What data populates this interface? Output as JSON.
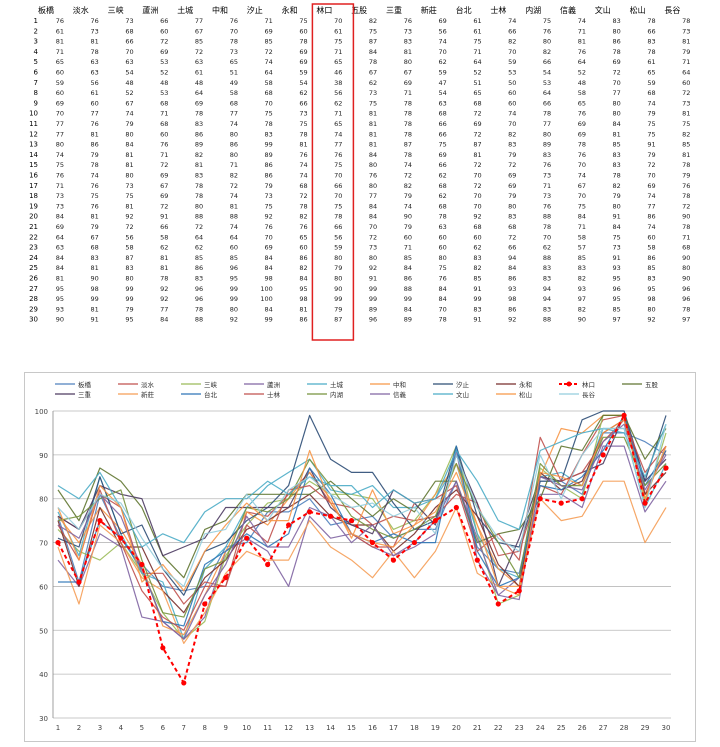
{
  "table": {
    "headers": [
      "板橋",
      "淡水",
      "三峡",
      "蘆洲",
      "土城",
      "中和",
      "汐止",
      "永和",
      "林口",
      "五股",
      "三重",
      "新莊",
      "台北",
      "士林",
      "内湖",
      "信義",
      "文山",
      "松山",
      "長谷"
    ],
    "highlight_col": 8,
    "row_labels": [
      "1",
      "2",
      "3",
      "4",
      "5",
      "6",
      "7",
      "8",
      "9",
      "10",
      "11",
      "12",
      "13",
      "14",
      "15",
      "16",
      "17",
      "18",
      "19",
      "20",
      "21",
      "22",
      "23",
      "24",
      "25",
      "26",
      "27",
      "28",
      "29",
      "30"
    ]
  },
  "chart_data": {
    "type": "line",
    "categories": [
      "1",
      "2",
      "3",
      "4",
      "5",
      "6",
      "7",
      "8",
      "9",
      "10",
      "11",
      "12",
      "13",
      "14",
      "15",
      "16",
      "17",
      "18",
      "19",
      "20",
      "21",
      "22",
      "23",
      "24",
      "25",
      "26",
      "27",
      "28",
      "29",
      "30"
    ],
    "ylim": [
      30,
      100
    ],
    "yticks": [
      "30",
      "40",
      "50",
      "60",
      "70",
      "80",
      "90",
      "100"
    ],
    "grid": true,
    "legend_position": "top",
    "highlight_series": "林口",
    "series": [
      {
        "name": "板橋",
        "color": "#4f81bd",
        "values": [
          76,
          61,
          81,
          71,
          65,
          60,
          59,
          60,
          69,
          70,
          77,
          77,
          80,
          74,
          75,
          76,
          71,
          73,
          73,
          84,
          69,
          64,
          63,
          84,
          84,
          81,
          95,
          95,
          93,
          90
        ]
      },
      {
        "name": "淡水",
        "color": "#c0504d",
        "values": [
          76,
          73,
          81,
          78,
          63,
          63,
          56,
          61,
          60,
          77,
          76,
          81,
          86,
          79,
          78,
          74,
          76,
          75,
          76,
          81,
          79,
          67,
          68,
          83,
          81,
          90,
          98,
          99,
          81,
          91
        ]
      },
      {
        "name": "三峡",
        "color": "#9bbb59",
        "values": [
          73,
          68,
          66,
          70,
          63,
          54,
          48,
          52,
          67,
          74,
          79,
          80,
          84,
          81,
          81,
          80,
          73,
          75,
          81,
          92,
          72,
          56,
          58,
          87,
          83,
          80,
          99,
          99,
          79,
          95
        ]
      },
      {
        "name": "蘆洲",
        "color": "#8064a2",
        "values": [
          66,
          60,
          72,
          69,
          53,
          52,
          48,
          53,
          68,
          71,
          68,
          60,
          76,
          71,
          72,
          69,
          67,
          69,
          72,
          91,
          66,
          58,
          62,
          81,
          81,
          78,
          92,
          92,
          77,
          84
        ]
      },
      {
        "name": "土城",
        "color": "#4bacc6",
        "values": [
          77,
          67,
          85,
          72,
          63,
          61,
          48,
          64,
          69,
          78,
          83,
          86,
          89,
          82,
          81,
          83,
          78,
          78,
          80,
          88,
          72,
          64,
          62,
          85,
          86,
          83,
          96,
          96,
          78,
          88
        ]
      },
      {
        "name": "中和",
        "color": "#f79646",
        "values": [
          76,
          70,
          78,
          73,
          65,
          51,
          49,
          58,
          68,
          77,
          74,
          80,
          86,
          80,
          71,
          82,
          72,
          74,
          81,
          88,
          74,
          64,
          60,
          85,
          96,
          95,
          99,
          99,
          80,
          92
        ]
      },
      {
        "name": "汐止",
        "color": "#2c4d75",
        "values": [
          71,
          69,
          85,
          72,
          74,
          64,
          58,
          68,
          70,
          75,
          78,
          83,
          99,
          89,
          86,
          86,
          79,
          73,
          75,
          92,
          76,
          70,
          69,
          84,
          84,
          98,
          100,
          100,
          84,
          99
        ]
      },
      {
        "name": "永和",
        "color": "#772c2a",
        "values": [
          75,
          60,
          78,
          69,
          69,
          59,
          54,
          62,
          66,
          73,
          75,
          78,
          81,
          76,
          74,
          74,
          68,
          72,
          78,
          82,
          76,
          65,
          60,
          86,
          82,
          84,
          95,
          98,
          81,
          86
        ]
      },
      {
        "name": "林口",
        "color": "#ff0000",
        "dashed": true,
        "values": [
          70,
          61,
          75,
          71,
          65,
          46,
          38,
          56,
          62,
          71,
          65,
          74,
          77,
          76,
          75,
          70,
          66,
          70,
          75,
          78,
          66,
          56,
          59,
          80,
          79,
          80,
          90,
          99,
          79,
          87
        ]
      },
      {
        "name": "五股",
        "color": "#5f7530",
        "values": [
          82,
          75,
          87,
          84,
          78,
          67,
          62,
          73,
          75,
          81,
          81,
          81,
          81,
          84,
          80,
          76,
          80,
          77,
          84,
          84,
          70,
          72,
          73,
          80,
          92,
          91,
          99,
          99,
          89,
          96
        ]
      },
      {
        "name": "三重",
        "color": "#4d3b62",
        "values": [
          76,
          73,
          83,
          81,
          80,
          67,
          69,
          71,
          78,
          78,
          78,
          78,
          87,
          78,
          74,
          72,
          82,
          79,
          74,
          90,
          79,
          60,
          71,
          85,
          84,
          86,
          88,
          99,
          84,
          89
        ]
      },
      {
        "name": "新莊",
        "color": "#f59d56",
        "values": [
          69,
          56,
          74,
          70,
          62,
          59,
          47,
          54,
          63,
          68,
          66,
          66,
          75,
          69,
          66,
          62,
          68,
          62,
          68,
          78,
          63,
          60,
          60,
          80,
          75,
          76,
          84,
          84,
          70,
          78
        ]
      },
      {
        "name": "台北",
        "color": "#2e75b6",
        "values": [
          61,
          61,
          75,
          71,
          64,
          52,
          51,
          65,
          68,
          72,
          69,
          72,
          87,
          81,
          72,
          70,
          72,
          70,
          70,
          92,
          68,
          60,
          62,
          83,
          82,
          85,
          91,
          99,
          83,
          91
        ]
      },
      {
        "name": "士林",
        "color": "#c0504d",
        "values": [
          74,
          66,
          82,
          70,
          59,
          53,
          50,
          60,
          60,
          74,
          70,
          82,
          83,
          79,
          72,
          69,
          69,
          79,
          80,
          83,
          68,
          72,
          66,
          94,
          84,
          86,
          93,
          98,
          86,
          92
        ]
      },
      {
        "name": "内湖",
        "color": "#76923c",
        "values": [
          75,
          76,
          80,
          82,
          66,
          54,
          53,
          64,
          66,
          78,
          77,
          80,
          89,
          83,
          76,
          73,
          71,
          73,
          76,
          88,
          78,
          70,
          62,
          88,
          83,
          83,
          94,
          94,
          83,
          88
        ]
      },
      {
        "name": "信義",
        "color": "#8064a2",
        "values": [
          74,
          71,
          81,
          76,
          64,
          52,
          48,
          58,
          65,
          76,
          69,
          69,
          78,
          76,
          70,
          74,
          67,
          70,
          75,
          84,
          71,
          58,
          57,
          85,
          83,
          82,
          93,
          97,
          82,
          90
        ]
      },
      {
        "name": "文山",
        "color": "#4bacc6",
        "values": [
          83,
          80,
          86,
          78,
          69,
          72,
          70,
          77,
          80,
          80,
          84,
          81,
          85,
          83,
          83,
          78,
          82,
          79,
          80,
          91,
          84,
          75,
          73,
          91,
          93,
          95,
          96,
          95,
          85,
          97
        ]
      },
      {
        "name": "松山",
        "color": "#f79646",
        "values": [
          78,
          66,
          83,
          78,
          61,
          65,
          59,
          68,
          74,
          79,
          75,
          75,
          91,
          79,
          72,
          70,
          69,
          74,
          77,
          86,
          74,
          60,
          58,
          86,
          85,
          83,
          95,
          98,
          80,
          92
        ]
      },
      {
        "name": "長谷",
        "color": "#93cddd",
        "values": [
          78,
          73,
          81,
          79,
          71,
          64,
          60,
          72,
          73,
          81,
          75,
          82,
          85,
          81,
          78,
          79,
          76,
          78,
          72,
          90,
          78,
          71,
          68,
          90,
          80,
          90,
          96,
          96,
          78,
          97
        ]
      }
    ]
  }
}
